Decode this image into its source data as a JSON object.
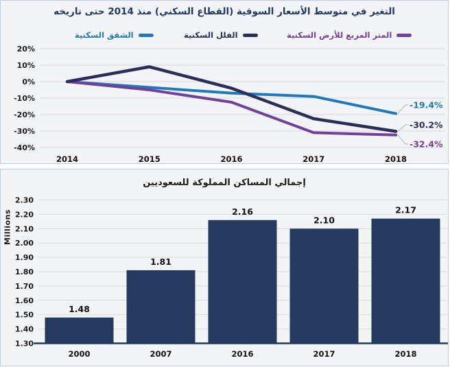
{
  "colors": {
    "panel_bg": "#f3f4f6",
    "panel_border": "#bad0e8",
    "gridline": "#d9d9dc",
    "leader_line": "#b3b3b3",
    "axis_line": "#1f3864",
    "title_line_chart": "#1f3864",
    "title_bar_chart": "#1c1c1c"
  },
  "chart_data": [
    {
      "type": "line",
      "title": "التغير في متوسط الأسعار السوقية (القطاع السكني) منذ 2014 حتى تاريخه",
      "categories": [
        "2014",
        "2015",
        "2016",
        "2017",
        "2018"
      ],
      "series": [
        {
          "key": "apartments",
          "name": "الشقق السكنية",
          "color": "#2079b8",
          "values": [
            0,
            -3.5,
            -7,
            -9,
            -19.4
          ],
          "end_label": "-19.4%"
        },
        {
          "key": "villas",
          "name": "الفلل السكنية",
          "color": "#2b2e5a",
          "values": [
            0,
            9,
            -4,
            -22.5,
            -30.2
          ],
          "end_label": "-30.2%"
        },
        {
          "key": "land-sqm",
          "name": "المتر المربع للأرض السكنية",
          "color": "#71409a",
          "values": [
            0,
            -5,
            -12.5,
            -31,
            -32.4
          ],
          "end_label": "-32.4%"
        }
      ],
      "y_ticks": [
        "20%",
        "10%",
        "0%",
        "-10%",
        "-20%",
        "-30%",
        "-40%"
      ],
      "y_tick_values": [
        20,
        10,
        0,
        -10,
        -20,
        -30,
        -40
      ],
      "ylim": [
        -40,
        20
      ],
      "grid": true,
      "legend_position": "top"
    },
    {
      "type": "bar",
      "title": "إجمالي المساكن المملوكة للسعوديين",
      "categories": [
        "2000",
        "2007",
        "2016",
        "2017",
        "2018"
      ],
      "values": [
        1.48,
        1.81,
        2.16,
        2.1,
        2.17
      ],
      "value_labels": [
        "1.48",
        "1.81",
        "2.16",
        "2.10",
        "2.17"
      ],
      "ylabel": "Millions",
      "y_ticks": [
        "2.30",
        "2.20",
        "2.10",
        "2.00",
        "1.90",
        "1.80",
        "1.70",
        "1.60",
        "1.50",
        "1.40",
        "1.30"
      ],
      "ylim": [
        1.3,
        2.3
      ],
      "grid": true,
      "bar_color": "#243a5e"
    }
  ]
}
